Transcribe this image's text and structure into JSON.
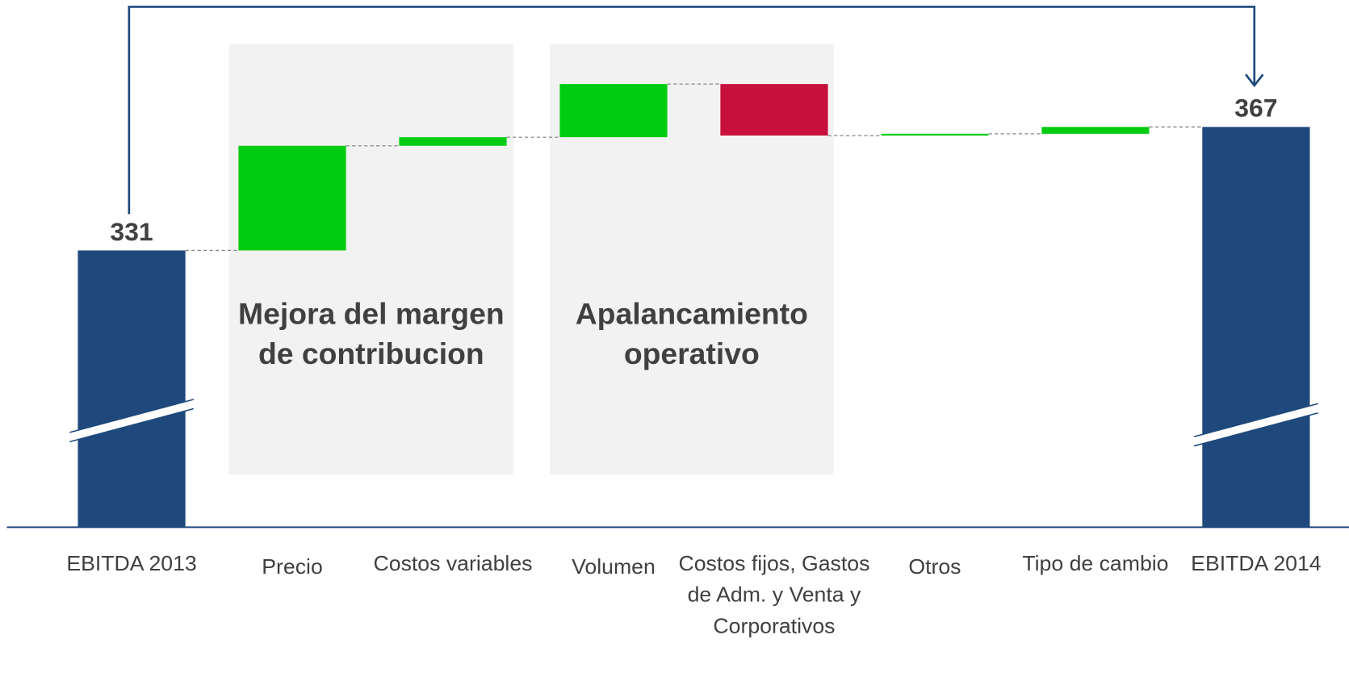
{
  "chart_data": {
    "type": "waterfall",
    "categories": [
      "EBITDA 2013",
      "Precio",
      "Costos variables",
      "Volumen",
      "Costos fijos, Gastos de Adm. y Venta y Corporativos",
      "Otros",
      "Tipo de cambio",
      "EBITDA 2014"
    ],
    "values": [
      331,
      30.5,
      2.5,
      15.5,
      -15,
      0.5,
      2,
      367
    ],
    "colors": {
      "total": "#1f497d",
      "increase": "#00cc11",
      "decrease": "#c8103c"
    },
    "groups": [
      {
        "label": "Mejora del margen de contribucion"
      },
      {
        "label": "Apalancamiento operativo"
      }
    ],
    "axis_break": true
  }
}
